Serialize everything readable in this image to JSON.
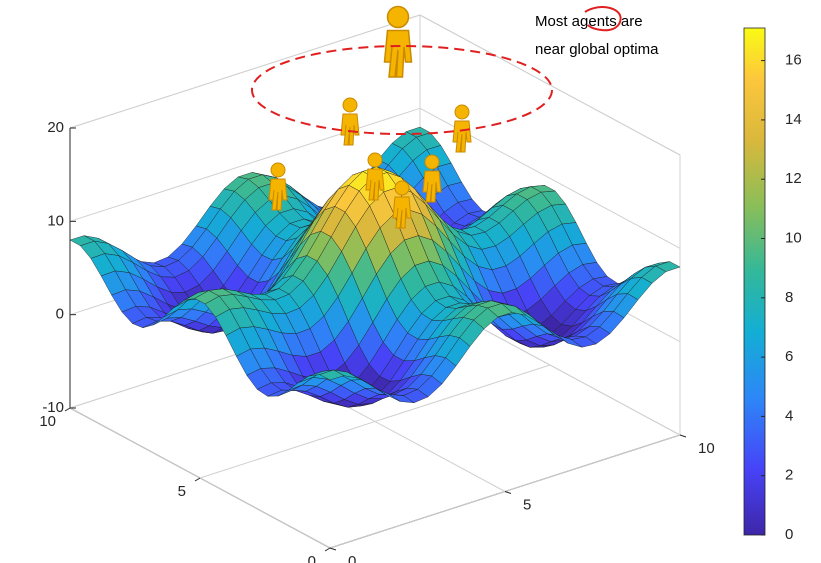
{
  "chart_data": {
    "type": "surface",
    "annotation": [
      "Most agents are",
      "near global optima"
    ],
    "zlim": [
      -10,
      20
    ],
    "zticks": [
      -10,
      0,
      10,
      20
    ],
    "xlim": [
      0,
      10
    ],
    "xticks": [
      0,
      5,
      10
    ],
    "ylim": [
      0,
      10
    ],
    "yticks": [
      0,
      5,
      10
    ],
    "colorbar": {
      "lim": [
        0,
        17.1
      ],
      "ticks": [
        0,
        2,
        4,
        6,
        8,
        10,
        12,
        14,
        16
      ]
    }
  }
}
